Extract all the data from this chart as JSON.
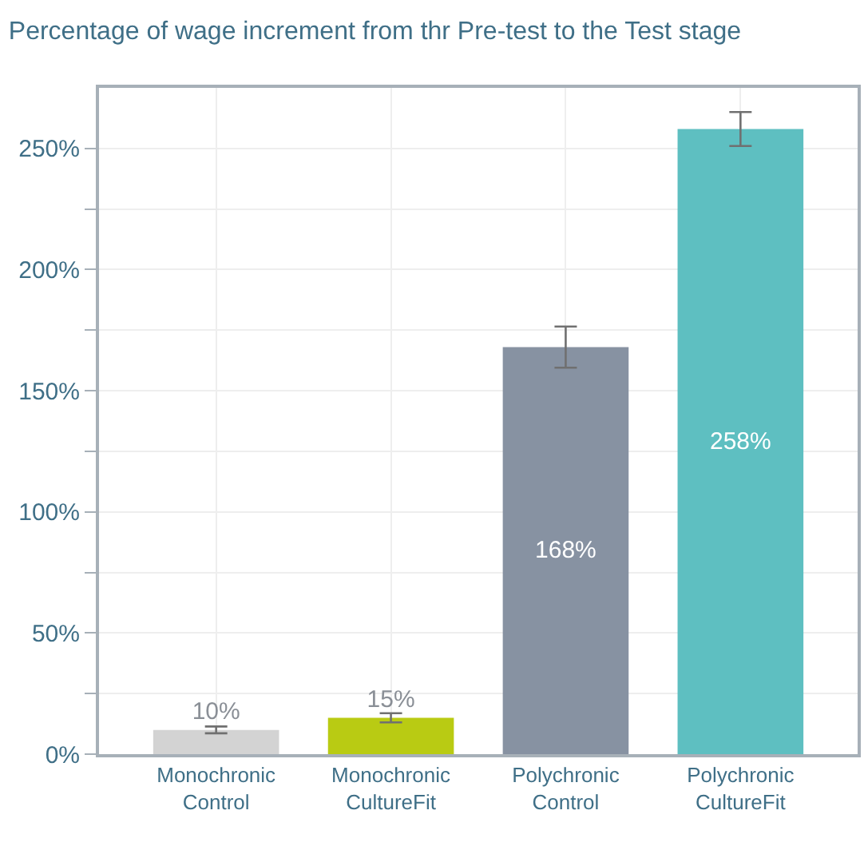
{
  "chart_data": {
    "type": "bar",
    "title": "Percentage of wage increment from thr Pre-test to the Test stage",
    "categories": [
      "Monochronic Control",
      "Monochronic CultureFit",
      "Polychronic Control",
      "Polychronic CultureFit"
    ],
    "values": [
      10,
      15,
      168,
      258
    ],
    "colors": [
      "#d3d3d3",
      "#b9cb13",
      "#8792a2",
      "#5ebfc1"
    ],
    "errors": [
      1.4,
      1.9,
      8.5,
      7
    ],
    "value_labels": [
      "10%",
      "15%",
      "168%",
      "258%"
    ],
    "ylim": [
      0,
      275
    ],
    "yticks": [
      {
        "value": 0,
        "label": "0%"
      },
      {
        "value": 25,
        "label": null
      },
      {
        "value": 50,
        "label": "50%"
      },
      {
        "value": 75,
        "label": null
      },
      {
        "value": 100,
        "label": "100%"
      },
      {
        "value": 125,
        "label": null
      },
      {
        "value": 150,
        "label": "150%"
      },
      {
        "value": 175,
        "label": null
      },
      {
        "value": 200,
        "label": "200%"
      },
      {
        "value": 225,
        "label": null
      },
      {
        "value": 250,
        "label": "250%"
      }
    ],
    "grid": true
  }
}
